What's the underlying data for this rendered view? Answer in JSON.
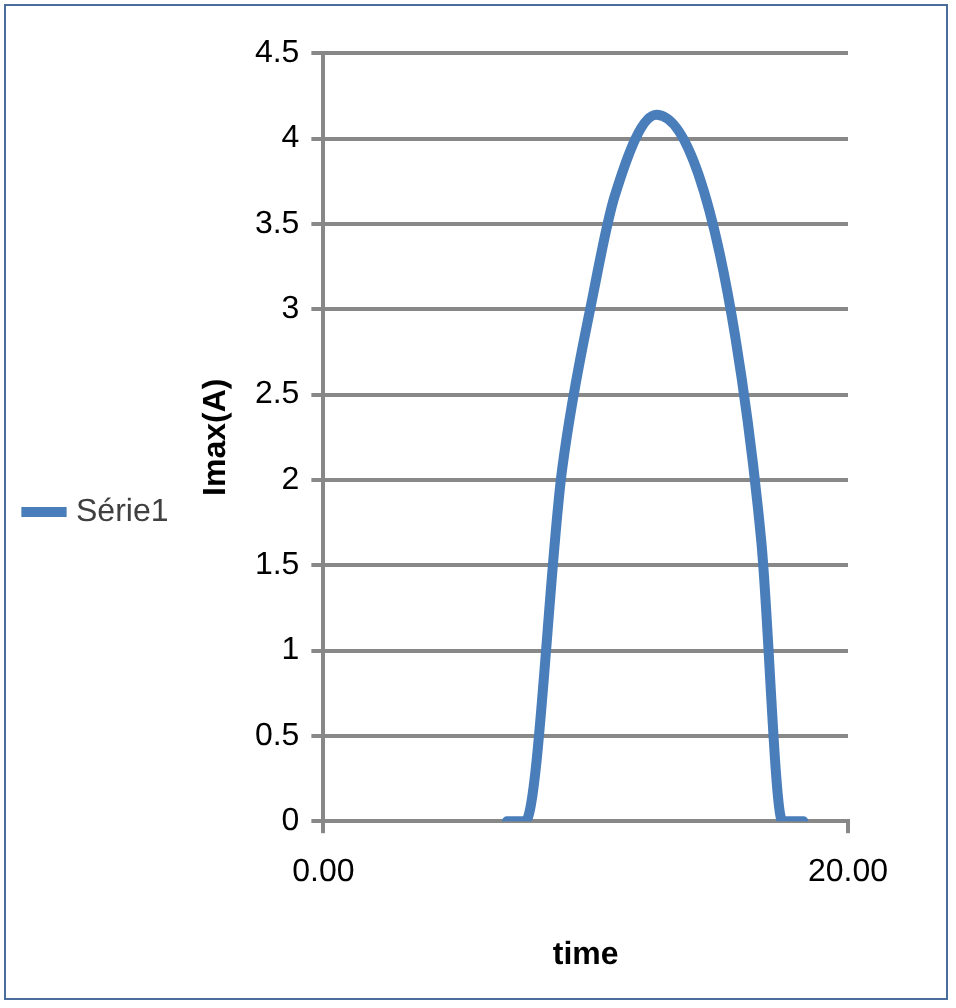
{
  "chart_data": {
    "type": "line",
    "xlabel": "time",
    "ylabel": "Imax(A)",
    "x": [
      7.0,
      7.7,
      9.1,
      10.3,
      11.1,
      12.7,
      14.3,
      15.7,
      16.7,
      17.5,
      18.3
    ],
    "series": [
      {
        "name": "Série1",
        "color": "#4a7ebb",
        "values": [
          0,
          0,
          2.06,
          3.1,
          3.66,
          4.14,
          3.79,
          2.84,
          1.63,
          0,
          0
        ]
      }
    ],
    "xlim": [
      0,
      20
    ],
    "xticks": [
      {
        "value": 0,
        "label": "0.00"
      },
      {
        "value": 20,
        "label": "20.00"
      }
    ],
    "ylim": [
      0,
      4.5
    ],
    "yticks": [
      0,
      0.5,
      1,
      1.5,
      2,
      2.5,
      3,
      3.5,
      4,
      4.5
    ],
    "grid": "y",
    "legend": "left",
    "marker": "none",
    "line_style": "solid"
  }
}
